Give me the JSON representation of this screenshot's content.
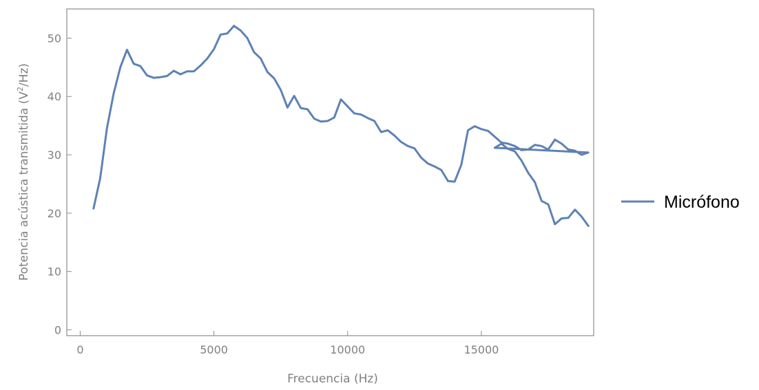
{
  "chart_data": {
    "type": "line",
    "title": "",
    "xlabel": "Frecuencia (Hz)",
    "ylabel": "Potencia acústica transmitida (V²/Hz)",
    "ylabel_parts": {
      "before": "Potencia acústica transmitida (",
      "base": "V",
      "sup": "2",
      "after": "/Hz)"
    },
    "xlim": [
      -500,
      19200
    ],
    "ylim": [
      -1,
      55
    ],
    "x_ticks": [
      0,
      5000,
      10000,
      15000
    ],
    "y_ticks": [
      0,
      10,
      20,
      30,
      40,
      50
    ],
    "grid": false,
    "legend_position": "right",
    "series": [
      {
        "name": "Micrófono",
        "color": "#5e81b5",
        "x": [
          500,
          750,
          1000,
          1250,
          1500,
          1750,
          2000,
          2250,
          2500,
          2750,
          3000,
          3250,
          3500,
          3750,
          4000,
          4250,
          4500,
          4750,
          5000,
          5250,
          5500,
          5750,
          6000,
          6250,
          6500,
          6750,
          7000,
          7250,
          7500,
          7750,
          8000,
          8250,
          8500,
          8750,
          9000,
          9250,
          9500,
          9750,
          10000,
          10250,
          10500,
          10750,
          11000,
          11250,
          11500,
          11750,
          12000,
          12250,
          12500,
          12750,
          13000,
          13250,
          13500,
          13750,
          14000,
          14250,
          14500,
          14750,
          15000,
          15250,
          15500,
          15750,
          16000,
          16250,
          16500,
          16750,
          17000,
          17250,
          17500,
          17750,
          18000,
          18250,
          18500,
          18750,
          19000
        ],
        "y": [
          20.8,
          26,
          34.5,
          40.5,
          45,
          48,
          45.6,
          45.2,
          43.6,
          43.2,
          43.3,
          43.5,
          44.4,
          43.8,
          44.3,
          44.3,
          45.3,
          46.5,
          48.1,
          50.6,
          50.8,
          52.1,
          51.3,
          50,
          47.6,
          46.5,
          44.2,
          43.1,
          41.1,
          38.1,
          40.1,
          38,
          37.8,
          36.2,
          35.7,
          35.8,
          36.4,
          39.5,
          38.3,
          37.1,
          36.9,
          36.3,
          35.8,
          33.9,
          34.2,
          33.3,
          32.2,
          31.5,
          31.1,
          29.5,
          28.5,
          28,
          27.4,
          25.5,
          25.4,
          28.3,
          34.2,
          34.9,
          34.4,
          34.1,
          33.1,
          32.1,
          31.9,
          31.5,
          30.8,
          30.9,
          31.7,
          31.5,
          30.9,
          32.6,
          31.9,
          30.9,
          30.7,
          30,
          30.4
        ],
        "x2": [
          15500,
          15750,
          16000,
          16250,
          16500,
          16750,
          17000,
          17250,
          17500,
          17750,
          18000,
          18250,
          18500,
          18750,
          19000
        ],
        "y2": [
          31.2,
          31.9,
          31,
          30.6,
          29,
          26.9,
          25.3,
          22.1,
          21.5,
          18.1,
          19.1,
          19.2,
          20.6,
          19.4,
          17.8
        ]
      }
    ]
  }
}
